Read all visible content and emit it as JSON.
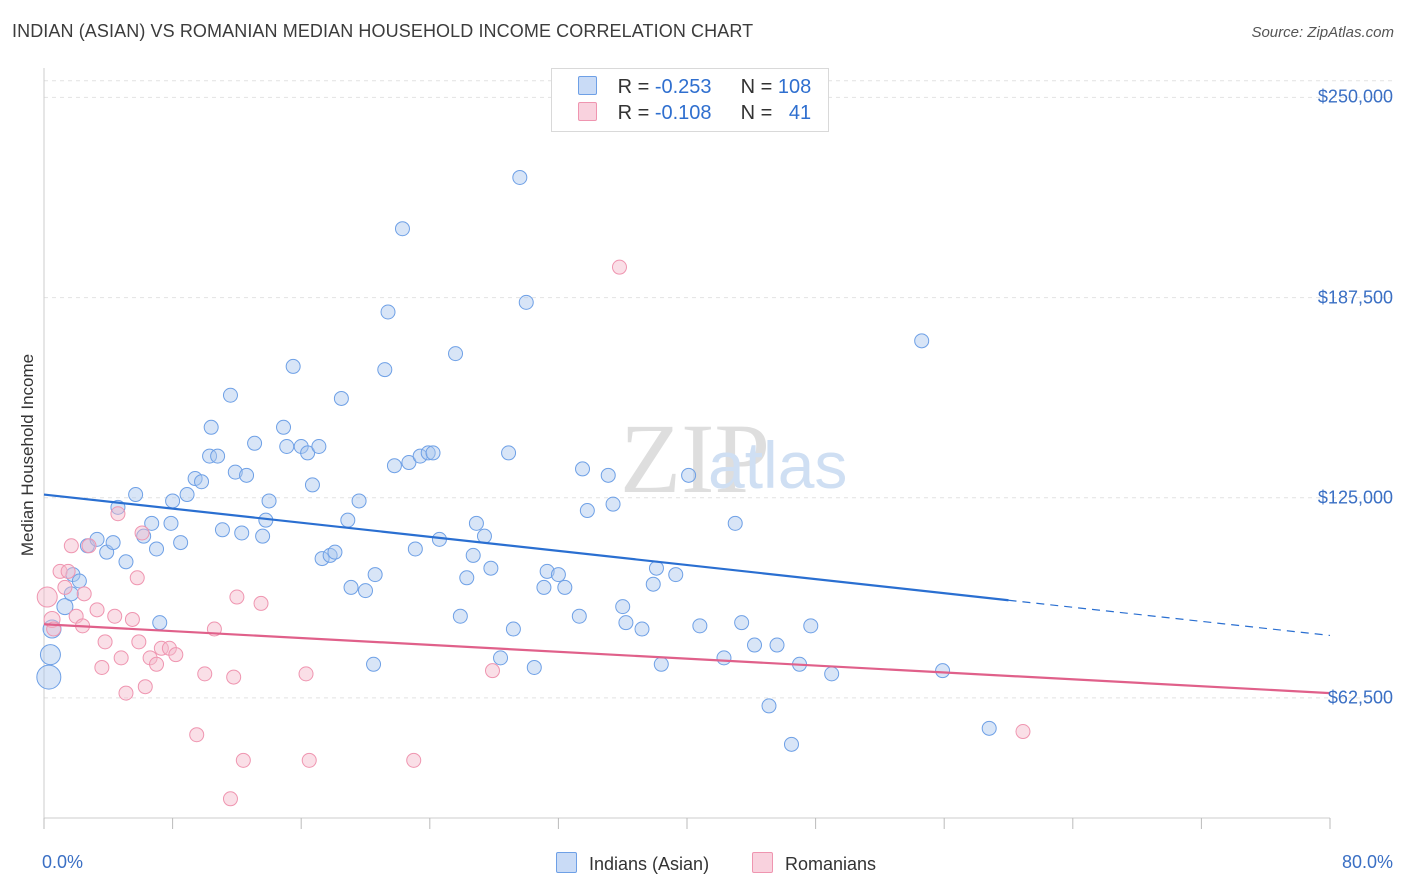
{
  "header": {
    "title": "INDIAN (ASIAN) VS ROMANIAN MEDIAN HOUSEHOLD INCOME CORRELATION CHART",
    "source": "Source: ZipAtlas.com"
  },
  "legend": {
    "rows": [
      {
        "r_label": "R = ",
        "r_value": "-0.253",
        "n_label": "N = ",
        "n_value": "108",
        "color": "#a9c5ee"
      },
      {
        "r_label": "R = ",
        "r_value": "-0.108",
        "n_label": "N = ",
        "n_value": "41",
        "color": "#f5b8c9"
      }
    ]
  },
  "watermark": {
    "zip": "ZIP",
    "atlas": "atlas"
  },
  "chart_data": {
    "type": "scatter",
    "title": "INDIAN (ASIAN) VS ROMANIAN MEDIAN HOUSEHOLD INCOME CORRELATION CHART",
    "xlabel": "",
    "ylabel": "Median Household Income",
    "xlim": [
      0,
      80
    ],
    "ylim": [
      25000,
      257000
    ],
    "x_tick_labels": [
      "0.0%",
      "80.0%"
    ],
    "y_ticks": [
      62500,
      125000,
      187500,
      250000
    ],
    "y_tick_labels": [
      "$62,500",
      "$125,000",
      "$187,500",
      "$250,000"
    ],
    "grid": true,
    "legend_position": "bottom",
    "series": [
      {
        "name": "Indians (Asian)",
        "color": "#6ea0e6",
        "fill": "#a9c5ee",
        "trend": {
          "x": [
            0,
            60
          ],
          "y": [
            126000,
            93000
          ],
          "dashed_x": [
            60,
            80
          ],
          "dashed_y": [
            93000,
            82000
          ],
          "line_color": "#2a6fd1"
        },
        "points": [
          [
            0.3,
            69000,
            24
          ],
          [
            0.4,
            76000,
            20
          ],
          [
            0.5,
            84000,
            18
          ],
          [
            1.3,
            91000,
            16
          ],
          [
            1.7,
            95000,
            14
          ],
          [
            1.8,
            101000,
            14
          ],
          [
            2.2,
            99000,
            14
          ],
          [
            2.7,
            110000,
            14
          ],
          [
            3.3,
            112000,
            14
          ],
          [
            3.9,
            108000,
            14
          ],
          [
            4.3,
            111000,
            14
          ],
          [
            4.6,
            122000,
            14
          ],
          [
            5.1,
            105000,
            14
          ],
          [
            5.7,
            126000,
            14
          ],
          [
            6.2,
            113000,
            14
          ],
          [
            6.7,
            117000,
            14
          ],
          [
            7.0,
            109000,
            14
          ],
          [
            7.2,
            86000,
            14
          ],
          [
            7.9,
            117000,
            14
          ],
          [
            8.0,
            124000,
            14
          ],
          [
            8.5,
            111000,
            14
          ],
          [
            8.9,
            126000,
            14
          ],
          [
            9.4,
            131000,
            14
          ],
          [
            9.8,
            130000,
            14
          ],
          [
            10.3,
            138000,
            14
          ],
          [
            10.4,
            147000,
            14
          ],
          [
            10.8,
            138000,
            14
          ],
          [
            11.1,
            115000,
            14
          ],
          [
            11.6,
            157000,
            14
          ],
          [
            11.9,
            133000,
            14
          ],
          [
            12.3,
            114000,
            14
          ],
          [
            12.6,
            132000,
            14
          ],
          [
            13.1,
            142000,
            14
          ],
          [
            13.6,
            113000,
            14
          ],
          [
            13.8,
            118000,
            14
          ],
          [
            14.0,
            124000,
            14
          ],
          [
            14.9,
            147000,
            14
          ],
          [
            15.1,
            141000,
            14
          ],
          [
            15.5,
            166000,
            14
          ],
          [
            16.0,
            141000,
            14
          ],
          [
            16.4,
            139000,
            14
          ],
          [
            16.7,
            129000,
            14
          ],
          [
            17.1,
            141000,
            14
          ],
          [
            17.3,
            106000,
            14
          ],
          [
            17.8,
            107000,
            14
          ],
          [
            18.1,
            108000,
            14
          ],
          [
            18.5,
            156000,
            14
          ],
          [
            18.9,
            118000,
            14
          ],
          [
            19.1,
            97000,
            14
          ],
          [
            19.6,
            124000,
            14
          ],
          [
            20.0,
            96000,
            14
          ],
          [
            20.5,
            73000,
            14
          ],
          [
            20.6,
            101000,
            14
          ],
          [
            21.2,
            165000,
            14
          ],
          [
            21.4,
            183000,
            14
          ],
          [
            21.8,
            135000,
            14
          ],
          [
            22.3,
            209000,
            14
          ],
          [
            22.7,
            136000,
            14
          ],
          [
            23.1,
            109000,
            14
          ],
          [
            23.4,
            138000,
            14
          ],
          [
            23.9,
            139000,
            14
          ],
          [
            24.2,
            139000,
            14
          ],
          [
            24.6,
            112000,
            14
          ],
          [
            25.6,
            170000,
            14
          ],
          [
            25.9,
            88000,
            14
          ],
          [
            26.3,
            100000,
            14
          ],
          [
            26.7,
            107000,
            14
          ],
          [
            26.9,
            117000,
            14
          ],
          [
            27.4,
            113000,
            14
          ],
          [
            27.8,
            103000,
            14
          ],
          [
            28.4,
            75000,
            14
          ],
          [
            28.9,
            139000,
            14
          ],
          [
            29.2,
            84000,
            14
          ],
          [
            29.6,
            225000,
            14
          ],
          [
            30.0,
            186000,
            14
          ],
          [
            30.5,
            72000,
            14
          ],
          [
            31.1,
            97000,
            14
          ],
          [
            31.3,
            102000,
            14
          ],
          [
            32.0,
            101000,
            14
          ],
          [
            32.4,
            97000,
            14
          ],
          [
            33.3,
            88000,
            14
          ],
          [
            33.5,
            134000,
            14
          ],
          [
            33.8,
            121000,
            14
          ],
          [
            35.1,
            132000,
            14
          ],
          [
            35.4,
            123000,
            14
          ],
          [
            36.0,
            91000,
            14
          ],
          [
            36.2,
            86000,
            14
          ],
          [
            37.2,
            84000,
            14
          ],
          [
            37.9,
            98000,
            14
          ],
          [
            38.1,
            103000,
            14
          ],
          [
            38.4,
            73000,
            14
          ],
          [
            39.3,
            101000,
            14
          ],
          [
            40.1,
            132000,
            14
          ],
          [
            40.8,
            85000,
            14
          ],
          [
            42.3,
            75000,
            14
          ],
          [
            43.0,
            117000,
            14
          ],
          [
            43.4,
            86000,
            14
          ],
          [
            44.2,
            79000,
            14
          ],
          [
            45.1,
            60000,
            14
          ],
          [
            45.6,
            79000,
            14
          ],
          [
            46.5,
            48000,
            14
          ],
          [
            47.0,
            73000,
            14
          ],
          [
            47.7,
            85000,
            14
          ],
          [
            49.0,
            70000,
            14
          ],
          [
            54.6,
            174000,
            14
          ],
          [
            55.9,
            71000,
            14
          ],
          [
            58.8,
            53000,
            14
          ]
        ]
      },
      {
        "name": "Romanians",
        "color": "#ef95b0",
        "fill": "#f5b8c9",
        "trend": {
          "x": [
            0,
            80
          ],
          "y": [
            85500,
            64000
          ],
          "line_color": "#e0608a"
        },
        "points": [
          [
            0.2,
            94000,
            20
          ],
          [
            0.5,
            87000,
            16
          ],
          [
            0.6,
            84000,
            14
          ],
          [
            1.0,
            102000,
            14
          ],
          [
            1.3,
            97000,
            14
          ],
          [
            1.5,
            102000,
            14
          ],
          [
            1.7,
            110000,
            14
          ],
          [
            2.0,
            88000,
            14
          ],
          [
            2.4,
            85000,
            14
          ],
          [
            2.5,
            95000,
            14
          ],
          [
            2.8,
            110000,
            14
          ],
          [
            3.3,
            90000,
            14
          ],
          [
            3.6,
            72000,
            14
          ],
          [
            3.8,
            80000,
            14
          ],
          [
            4.4,
            88000,
            14
          ],
          [
            4.6,
            120000,
            14
          ],
          [
            4.8,
            75000,
            14
          ],
          [
            5.1,
            64000,
            14
          ],
          [
            5.5,
            87000,
            14
          ],
          [
            5.8,
            100000,
            14
          ],
          [
            5.9,
            80000,
            14
          ],
          [
            6.1,
            114000,
            14
          ],
          [
            6.3,
            66000,
            14
          ],
          [
            6.6,
            75000,
            14
          ],
          [
            7.0,
            73000,
            14
          ],
          [
            7.3,
            78000,
            14
          ],
          [
            7.8,
            78000,
            14
          ],
          [
            8.2,
            76000,
            14
          ],
          [
            9.5,
            51000,
            14
          ],
          [
            10.0,
            70000,
            14
          ],
          [
            10.6,
            84000,
            14
          ],
          [
            11.6,
            31000,
            14
          ],
          [
            11.8,
            69000,
            14
          ],
          [
            12.0,
            94000,
            14
          ],
          [
            12.4,
            43000,
            14
          ],
          [
            13.5,
            92000,
            14
          ],
          [
            16.3,
            70000,
            14
          ],
          [
            16.5,
            43000,
            14
          ],
          [
            23.0,
            43000,
            14
          ],
          [
            27.9,
            71000,
            14
          ],
          [
            35.8,
            197000,
            14
          ],
          [
            60.9,
            52000,
            14
          ]
        ]
      }
    ]
  }
}
